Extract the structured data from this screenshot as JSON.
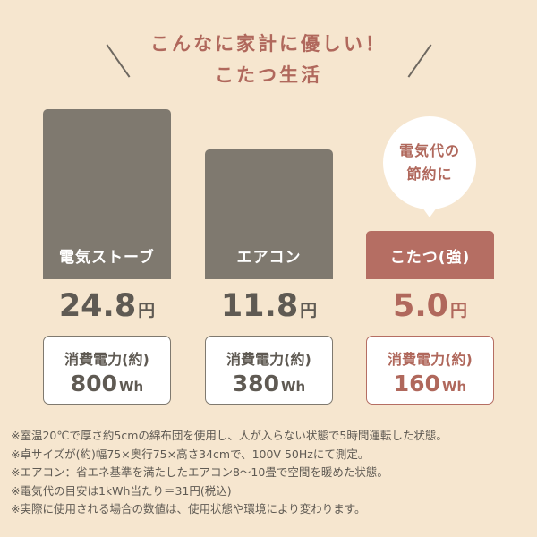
{
  "title_lines": [
    "こんなに家計に優しい！",
    "こたつ生活"
  ],
  "bubble": [
    "電気代の",
    "節約に"
  ],
  "colors": {
    "background": "#f6e6cf",
    "gray": "#7f796f",
    "accent": "#b56e63"
  },
  "chart_data": {
    "type": "bar",
    "categories": [
      "電気ストーブ",
      "エアコン",
      "こたつ(強)"
    ],
    "values": [
      24.8,
      11.8,
      5.0
    ],
    "value_labels": [
      "24.8",
      "11.8",
      "5.0"
    ],
    "unit": "円",
    "power_label": "消費電力(約)",
    "power_values": [
      "800",
      "380",
      "160"
    ],
    "power_unit": "Wh",
    "highlight": "こたつ(強)"
  },
  "notes": [
    "※室温20℃で厚さ約5cmの綿布団を使用し、人が入らない状態で5時間運転した状態。",
    "※卓サイズが(約)幅75×奥行75×高さ34cmで、100V 50Hzにて測定。",
    "※エアコン：省エネ基準を満たしたエアコン8〜10畳で空間を暖めた状態。",
    "※電気代の目安は1kWh当たり＝31円(税込)",
    "※実際に使用される場合の数値は、使用状態や環境により変わります。"
  ]
}
